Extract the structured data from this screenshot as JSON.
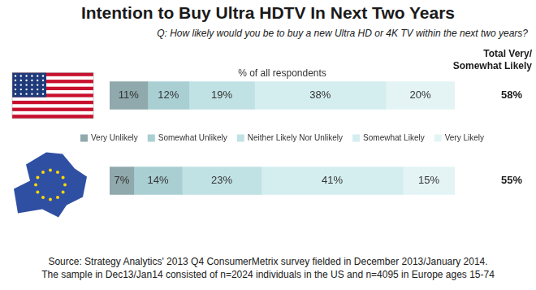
{
  "chart_data": {
    "type": "bar",
    "orientation": "horizontal",
    "stacked": true,
    "title": "Intention to Buy Ultra HDTV In Next Two Years",
    "subtitle": "Q: How likely would you be to buy a new Ultra HD or 4K TV within the next two years?",
    "x_label": "% of all respondents",
    "categories": [
      null,
      null
    ],
    "series": [
      {
        "name": "Very Unlikely",
        "color": "#8fa9ac",
        "values": [
          11,
          7
        ],
        "value_labels": [
          "11%",
          "7%"
        ]
      },
      {
        "name": "Somewhat Unlikely",
        "color": "#a9cfd3",
        "values": [
          12,
          14
        ],
        "value_labels": [
          "12%",
          "14%"
        ]
      },
      {
        "name": "Neither Likely Nor Unlikely",
        "color": "#c0e2e5",
        "values": [
          19,
          23
        ],
        "value_labels": [
          "19%",
          "23%"
        ]
      },
      {
        "name": "Somewhat Likely",
        "color": "#d4eef0",
        "values": [
          38,
          41
        ],
        "value_labels": [
          "38%",
          "41%"
        ]
      },
      {
        "name": "Very Likely",
        "color": "#e4f4f5",
        "values": [
          20,
          15
        ],
        "value_labels": [
          "20%",
          "15%"
        ]
      }
    ],
    "xlim": [
      0,
      100
    ],
    "tick_labels": false,
    "grid": false,
    "legend": "center",
    "data_labels": true,
    "totals": {
      "title": [
        "Total Very/",
        "Somewhat Likely"
      ],
      "values": [
        58,
        55
      ],
      "value_labels": [
        "58%",
        "55%"
      ]
    },
    "source": [
      "Source: Strategy Analytics' 2013 Q4 ConsumerMetrix survey fielded in December 2013/January 2014.",
      "The sample in Dec13/Jan14 consisted of n=2024 individuals in the US and n=4095 in Europe ages 15-74"
    ]
  }
}
